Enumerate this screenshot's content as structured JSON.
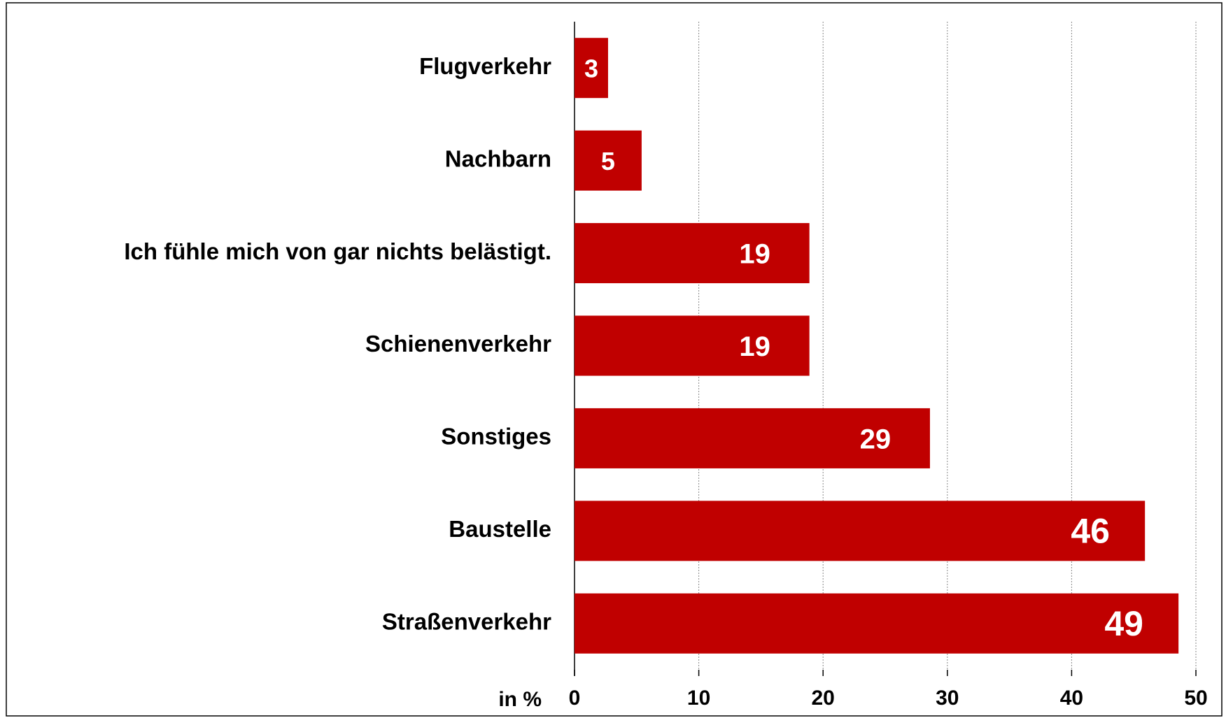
{
  "chart_data": {
    "type": "hbar",
    "categories": [
      "Flugverkehr",
      "Nachbarn",
      "Ich fühle mich von gar nichts belästigt.",
      "Schienenverkehr",
      "Sonstiges",
      "Baustelle",
      "Straßenverkehr"
    ],
    "values": [
      2.7,
      5.4,
      18.9,
      18.9,
      28.6,
      45.9,
      48.6
    ],
    "value_labels": [
      "3",
      "5",
      "19",
      "19",
      "29",
      "46",
      "49"
    ],
    "color": "#c00000",
    "xlim": [
      0,
      50
    ],
    "xticks": [
      0,
      10,
      20,
      30,
      40,
      50
    ],
    "grid": true,
    "xlabel": "in %"
  }
}
